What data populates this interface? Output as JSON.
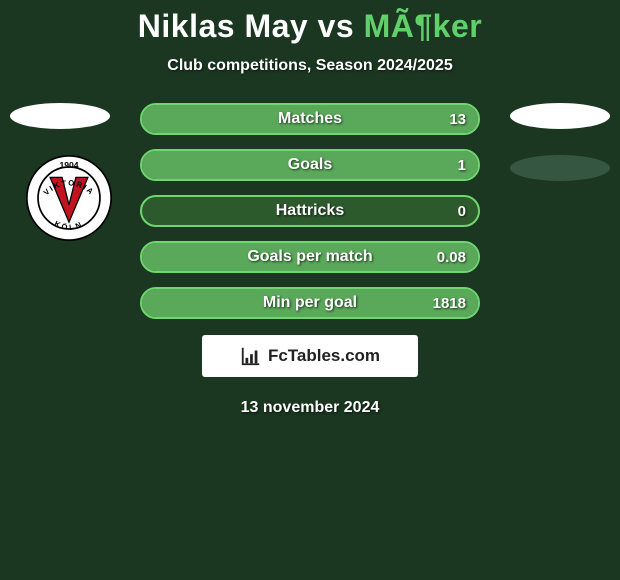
{
  "title": {
    "player1": "Niklas May",
    "vs": "vs",
    "player2": "MÃ¶ker"
  },
  "subtitle": "Club competitions, Season 2024/2025",
  "colors": {
    "bg": "#1b3721",
    "bar_border": "#6ed76e",
    "bar_bg": "#2d5a2d",
    "bar_fill": "#5aa85a",
    "title_p2": "#62d06a",
    "ellipse_right2": "#355640"
  },
  "bars": [
    {
      "label": "Matches",
      "value": "13",
      "fill_pct": 100
    },
    {
      "label": "Goals",
      "value": "1",
      "fill_pct": 100
    },
    {
      "label": "Hattricks",
      "value": "0",
      "fill_pct": 0
    },
    {
      "label": "Goals per match",
      "value": "0.08",
      "fill_pct": 100
    },
    {
      "label": "Min per goal",
      "value": "1818",
      "fill_pct": 100
    }
  ],
  "logo_text": "FcTables.com",
  "date": "13 november 2024",
  "badge": {
    "year": "1904",
    "letter": "V",
    "name_top": "VIKTORIA",
    "name_bottom": "KÖLN"
  }
}
